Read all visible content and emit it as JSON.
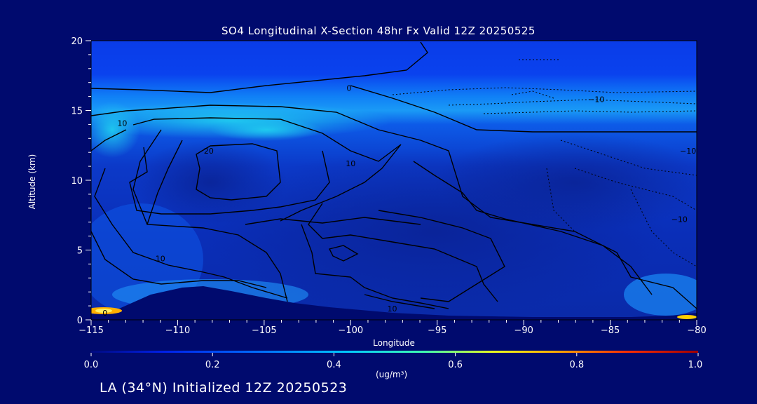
{
  "title": "SO4 Longitudinal X-Section 48hr  Fx Valid 12Z 20250525",
  "footer": "LA (34°N) Initialized 12Z 20250523",
  "colorbar": {
    "unit_label": "(ug/m³)",
    "min": 0.0,
    "max": 1.0,
    "tick_labels": [
      "0.0",
      "0.2",
      "0.4",
      "0.6",
      "0.8",
      "1.0"
    ],
    "tick_values": [
      0.0,
      0.2,
      0.4,
      0.6,
      0.8,
      1.0
    ]
  },
  "chart_data": {
    "type": "heatmap",
    "title": "SO4 Longitudinal X-Section 48hr  Fx Valid 12Z 20250525",
    "xlabel": "Longitude",
    "ylabel": "Altitude (km)",
    "xlim": [
      -115,
      -80
    ],
    "ylim": [
      0,
      20
    ],
    "x_ticks": [
      -115,
      -110,
      -105,
      -100,
      -95,
      -90,
      -85,
      -80
    ],
    "x_tick_labels": [
      "−115",
      "−110",
      "−105",
      "−100",
      "−95",
      "−90",
      "−85",
      "−80"
    ],
    "y_ticks": [
      0,
      5,
      10,
      15,
      20
    ],
    "y_tick_labels": [
      "0",
      "5",
      "10",
      "15",
      "20"
    ],
    "contour_labels": [
      {
        "text": "0",
        "lon": -114.2,
        "lat_km": 0.5
      },
      {
        "text": "10",
        "lon": -113.2,
        "lat_km": 14.1
      },
      {
        "text": "20",
        "lon": -108.2,
        "lat_km": 12.1
      },
      {
        "text": "0",
        "lon": -100.1,
        "lat_km": 16.6
      },
      {
        "text": "10",
        "lon": -100.0,
        "lat_km": 11.2
      },
      {
        "text": "10",
        "lon": -111.0,
        "lat_km": 4.4
      },
      {
        "text": "−10",
        "lon": -85.8,
        "lat_km": 15.8
      },
      {
        "text": "−10",
        "lon": -80.5,
        "lat_km": 12.1
      },
      {
        "text": "−10",
        "lon": -81.0,
        "lat_km": 7.2
      },
      {
        "text": "10",
        "lon": -97.6,
        "lat_km": 0.8
      }
    ]
  }
}
